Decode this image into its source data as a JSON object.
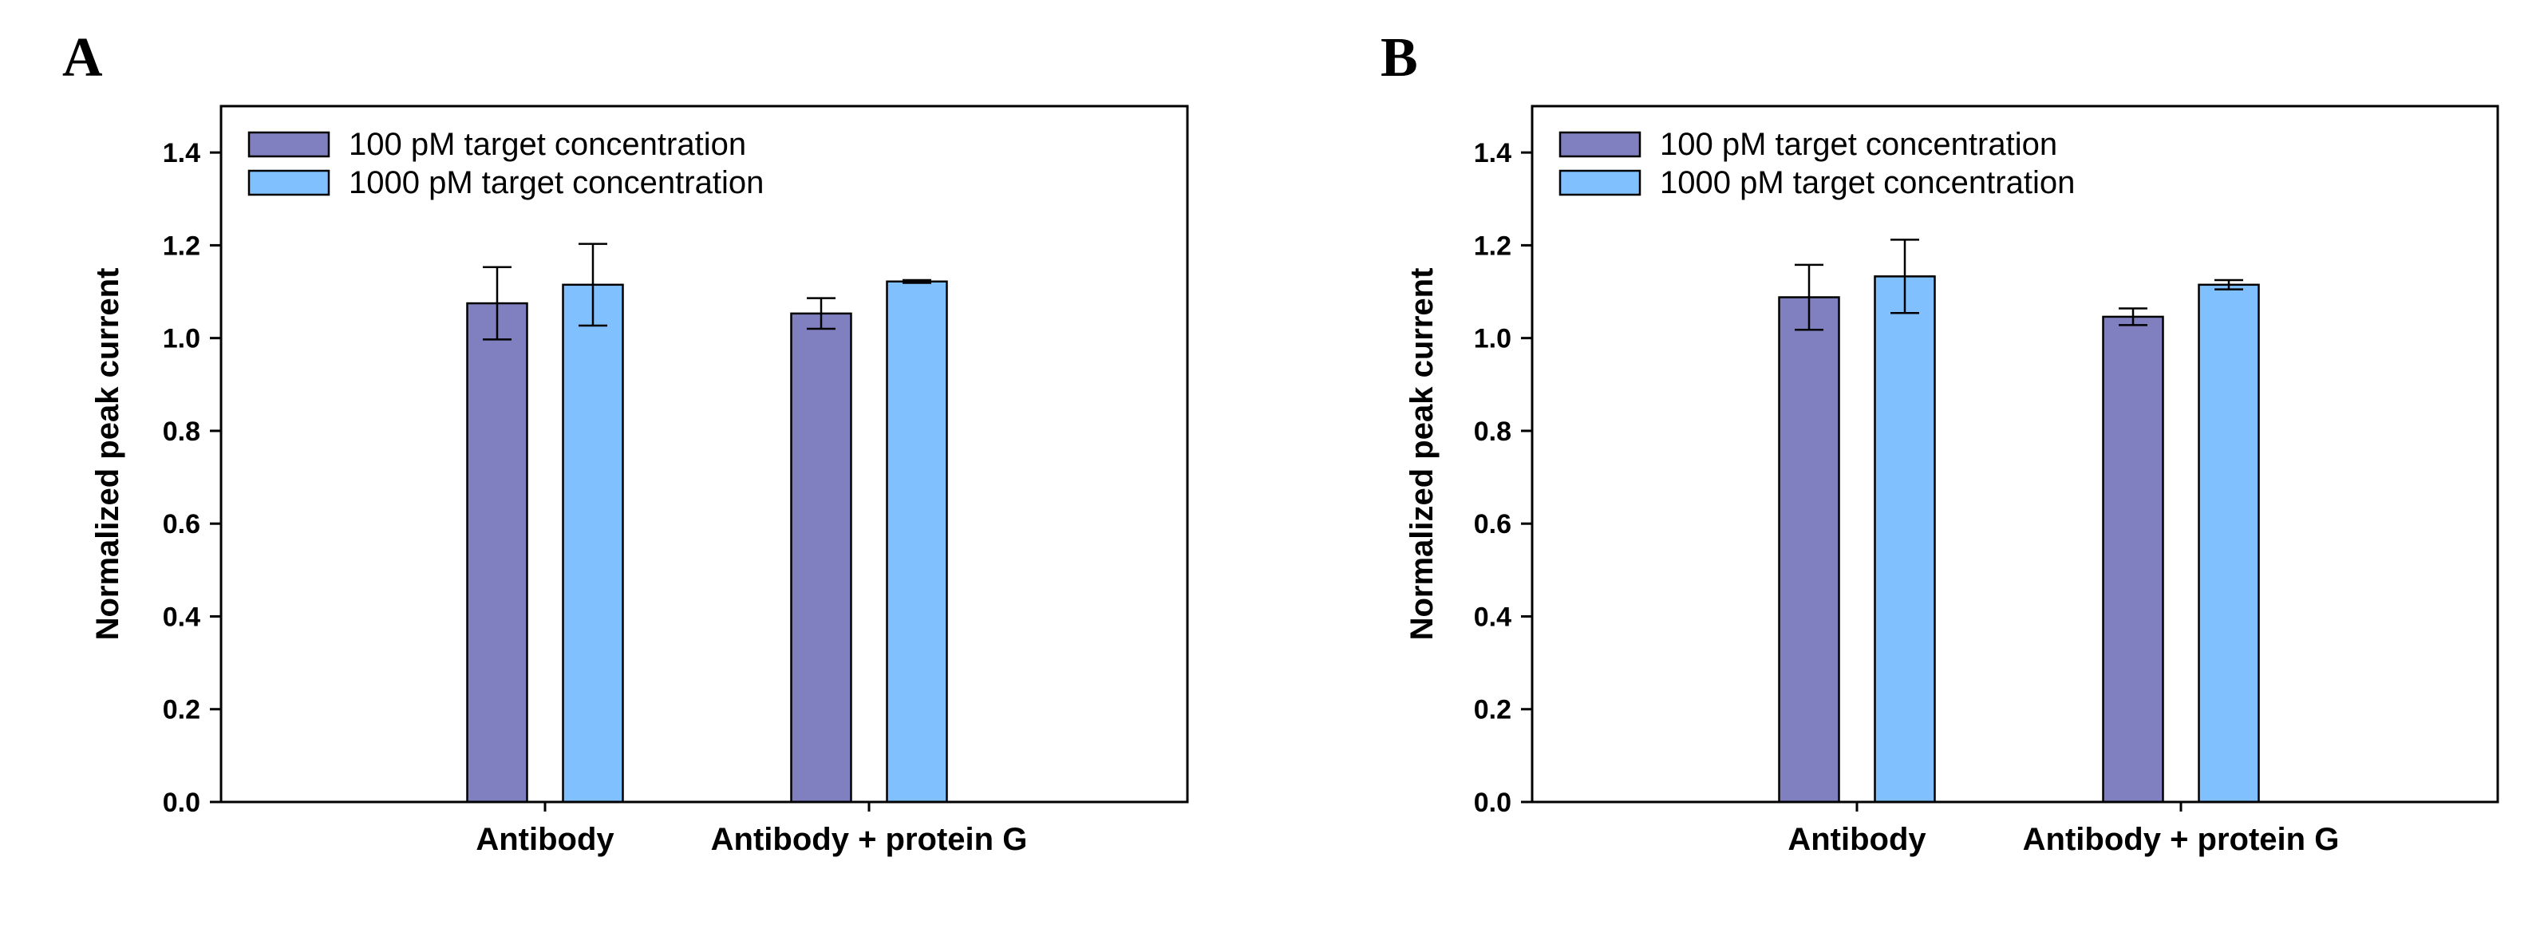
{
  "colors": {
    "series_100": "#8080c0",
    "series_1000": "#80c0ff",
    "stroke": "#000000"
  },
  "chart_data": [
    {
      "type": "bar",
      "panel": "A",
      "ylabel": "Normalized peak current",
      "xlabel": "",
      "ylim": [
        0,
        1.5
      ],
      "yticks": [
        "0.0",
        "0.2",
        "0.4",
        "0.6",
        "0.8",
        "1.0",
        "1.2",
        "1.4"
      ],
      "categories": [
        "Antibody",
        "Antibody + protein G"
      ],
      "legend_position": "top-left",
      "series": [
        {
          "name": "100 pM target concentration",
          "values": [
            1.075,
            1.053
          ],
          "errors": [
            0.078,
            0.033
          ]
        },
        {
          "name": "1000 pM target concentration",
          "values": [
            1.115,
            1.122
          ],
          "errors": [
            0.088,
            0.003
          ]
        }
      ]
    },
    {
      "type": "bar",
      "panel": "B",
      "ylabel": "Normalized peak current",
      "xlabel": "",
      "ylim": [
        0,
        1.5
      ],
      "yticks": [
        "0.0",
        "0.2",
        "0.4",
        "0.6",
        "0.8",
        "1.0",
        "1.2",
        "1.4"
      ],
      "categories": [
        "Antibody",
        "Antibody + protein G"
      ],
      "legend_position": "top-left",
      "series": [
        {
          "name": "100 pM target concentration",
          "values": [
            1.088,
            1.046
          ],
          "errors": [
            0.07,
            0.018
          ]
        },
        {
          "name": "1000 pM target concentration",
          "values": [
            1.133,
            1.115
          ],
          "errors": [
            0.079,
            0.01
          ]
        }
      ]
    }
  ]
}
